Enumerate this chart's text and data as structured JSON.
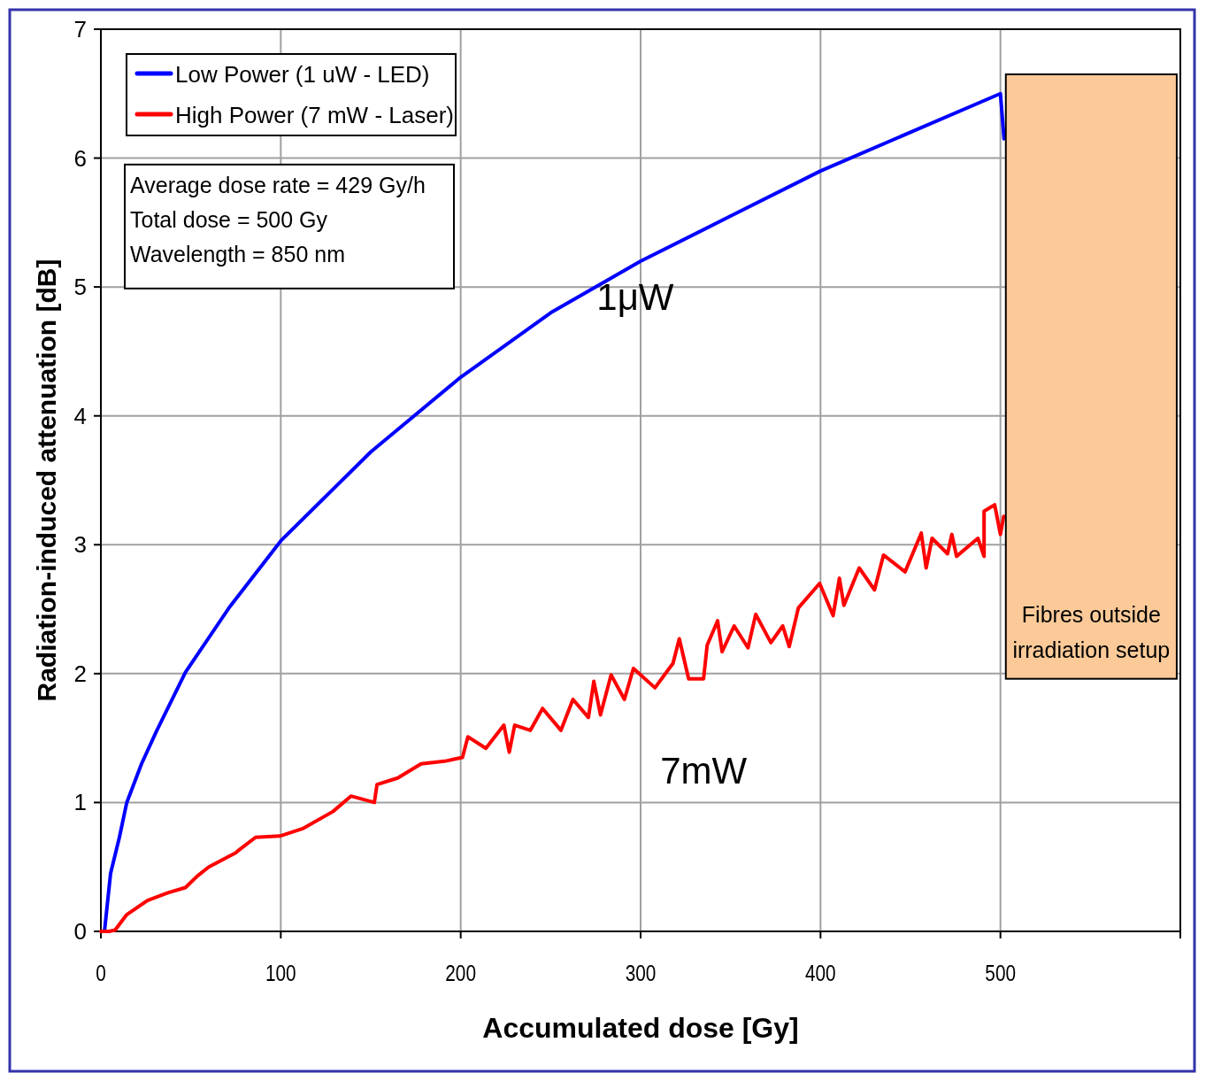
{
  "chart_data": {
    "type": "line",
    "xlabel": "Accumulated dose [Gy]",
    "ylabel": "Radiation-induced attenuation [dB]",
    "xlim": [
      0,
      600
    ],
    "xticks": [
      0,
      100,
      200,
      300,
      400,
      500,
      {
        "value": 600,
        "label": null
      }
    ],
    "ylim": [
      0,
      7
    ],
    "yticks": [
      0,
      1,
      2,
      3,
      4,
      5,
      6,
      7
    ],
    "grid": true,
    "legend": "top left",
    "line_style": "solid",
    "marker": "none",
    "series": [
      {
        "name": "Low Power (1 uW - LED)",
        "color": "#0000ff",
        "x": [
          2,
          5.4,
          10.3,
          14.4,
          22.6,
          30.8,
          47,
          71.7,
          100,
          150,
          200,
          250,
          300,
          350,
          400,
          450,
          500,
          502
        ],
        "values": [
          0,
          0.45,
          0.73,
          1.0,
          1.3,
          1.55,
          2.01,
          2.52,
          3.03,
          3.72,
          4.3,
          4.8,
          5.2,
          5.55,
          5.9,
          6.2,
          6.5,
          6.15
        ]
      },
      {
        "name": "High Power (7 mW - Laser)",
        "color": "#ff0000",
        "x": [
          0,
          4.6,
          7.9,
          14.4,
          25.9,
          37.3,
          47,
          53.7,
          60,
          75,
          76.6,
          86,
          99.5,
          112.6,
          129,
          139,
          152,
          153.5,
          165,
          178,
          191,
          201,
          204,
          214,
          224,
          227,
          230,
          238.7,
          245.5,
          255.7,
          262.4,
          271,
          274,
          277.7,
          283.6,
          291,
          296,
          308,
          318,
          321.5,
          326.7,
          335,
          337,
          342.8,
          345.3,
          352,
          359.7,
          364,
          372.4,
          379,
          382.6,
          387.7,
          399.5,
          407,
          410.5,
          413,
          421.5,
          430,
          435,
          447,
          456,
          458.7,
          462,
          470.6,
          473,
          475.6,
          487.5,
          490.9,
          490.9,
          496.8,
          500,
          501.8
        ],
        "values": [
          0,
          0,
          0.01,
          0.13,
          0.24,
          0.3,
          0.34,
          0.43,
          0.5,
          0.61,
          0.63,
          0.73,
          0.74,
          0.8,
          0.93,
          1.05,
          1.0,
          1.14,
          1.19,
          1.3,
          1.32,
          1.35,
          1.51,
          1.42,
          1.6,
          1.39,
          1.6,
          1.56,
          1.73,
          1.56,
          1.8,
          1.66,
          1.94,
          1.68,
          1.99,
          1.8,
          2.04,
          1.89,
          2.08,
          2.27,
          1.96,
          1.96,
          2.22,
          2.41,
          2.17,
          2.37,
          2.2,
          2.46,
          2.24,
          2.37,
          2.21,
          2.51,
          2.7,
          2.45,
          2.74,
          2.53,
          2.82,
          2.65,
          2.92,
          2.79,
          3.09,
          2.82,
          3.05,
          2.93,
          3.08,
          2.91,
          3.05,
          2.91,
          3.26,
          3.31,
          3.08,
          3.22
        ]
      }
    ],
    "annotations": [
      "1μW",
      "7mW",
      "Average dose rate = 429 Gy/h\nTotal dose = 500 Gy\nWavelength = 850 nm",
      "Fibres outside\nirradiation setup"
    ]
  }
}
